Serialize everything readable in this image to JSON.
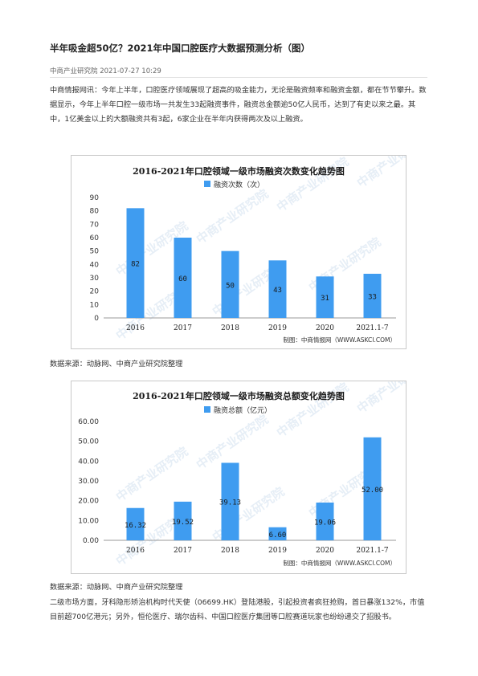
{
  "article": {
    "title": "半年吸金超50亿？2021年中国口腔医疗大数据预测分析（图）",
    "meta": "中商产业研究院 2021-07-27 10:29",
    "para1": "中商情报网讯：今年上半年，口腔医疗领域展现了超高的吸金能力，无论是融资频率和融资金额，都在节节攀升。数据显示，今年上半年口腔一级市场一共发生33起融资事件，融资总金额逾50亿人民币，达到了有史以来之最。其中，1亿美金以上的大额融资共有3起，6家企业在半年内获得两次及以上融资。",
    "source1": "数据来源：动脉网、中商产业研究院整理",
    "source2": "数据来源：动脉网、中商产业研究院整理",
    "para2": "二级市场方面，牙科隐形矫治机构时代天使（06699.HK）登陆港股，引起投资者疯狂抢购，首日暴涨132%，市值目前超700亿港元；另外，恒伦医疗、瑞尔齿科、中国口腔医疗集团等口腔赛道玩家也纷纷递交了招股书。"
  },
  "colors": {
    "bar": "#3f9cf0",
    "watermark": "#8fb4da"
  },
  "watermark_text": "中商产业研究院",
  "chart_data": [
    {
      "type": "bar",
      "title": "2016-2021年口腔领域一级市场融资次数变化趋势图",
      "legend": "融资次数（次）",
      "legend_position": "top-center",
      "categories": [
        "2016",
        "2017",
        "2018",
        "2019",
        "2020",
        "2021.1-7"
      ],
      "values": [
        82,
        60,
        50,
        43,
        31,
        33
      ],
      "value_labels": [
        "82",
        "60",
        "50",
        "43",
        "31",
        "33"
      ],
      "yticks": [
        "0",
        "10",
        "20",
        "30",
        "40",
        "50",
        "60",
        "70",
        "80",
        "90"
      ],
      "ylim": [
        0,
        90
      ],
      "grid": false,
      "credit": "制图：中商情报网（WWW.ASKCI.COM）"
    },
    {
      "type": "bar",
      "title": "2016-2021年口腔领域一级市场融资总额变化趋势图",
      "legend": "融资总额（亿元）",
      "legend_position": "top-center",
      "categories": [
        "2016",
        "2017",
        "2018",
        "2019",
        "2020",
        "2021.1-7"
      ],
      "values": [
        16.32,
        19.52,
        39.13,
        6.6,
        19.06,
        52.0
      ],
      "value_labels": [
        "16.32",
        "19.52",
        "39.13",
        "6.60",
        "19.06",
        "52.00"
      ],
      "yticks": [
        "0.00",
        "10.00",
        "20.00",
        "30.00",
        "40.00",
        "50.00",
        "60.00"
      ],
      "ylim": [
        0,
        60
      ],
      "grid": false,
      "credit": "制图：中商情报网（WWW.ASKCI.COM）"
    }
  ]
}
